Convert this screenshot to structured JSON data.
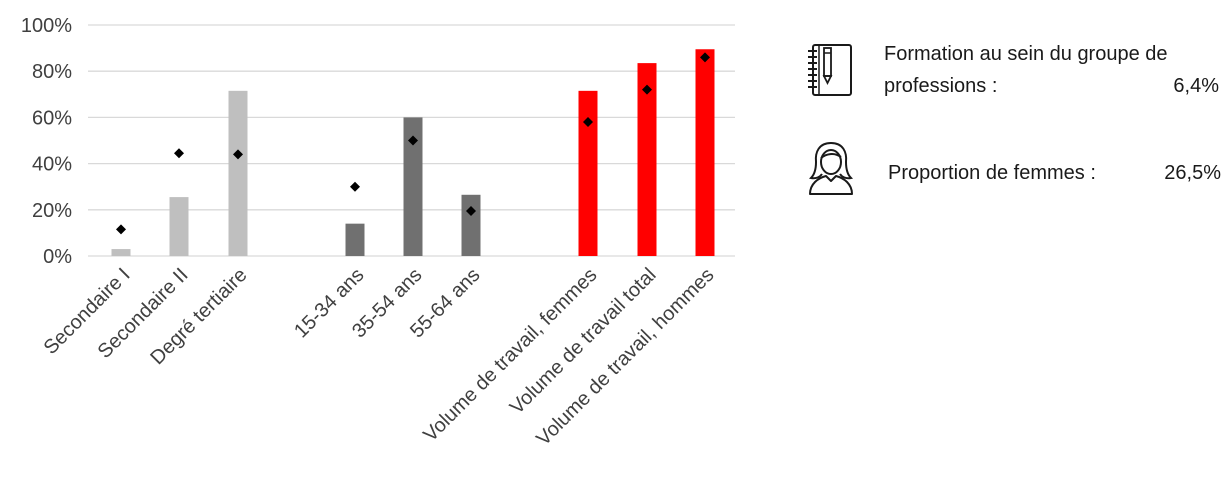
{
  "chart_data": {
    "type": "bar",
    "categories": [
      "Secondaire I",
      "Secondaire II",
      "Degré tertiaire",
      "15-34 ans",
      "35-54 ans",
      "55-64 ans",
      "Volume de travail, femmes",
      "Volume de travail total",
      "Volume de travail, hommes"
    ],
    "groups": [
      {
        "categories": [
          0,
          1,
          2
        ],
        "color": "#bfbfbf"
      },
      {
        "categories": [
          3,
          4,
          5
        ],
        "color": "#707070"
      },
      {
        "categories": [
          6,
          7,
          8
        ],
        "color": "#ff0000"
      }
    ],
    "values": [
      3,
      25.5,
      71.5,
      14,
      60,
      26.5,
      71.5,
      83.5,
      89.5
    ],
    "markers": [
      11.5,
      44.5,
      44,
      30,
      50,
      19.5,
      58,
      72,
      86
    ],
    "marker_color": "#000000",
    "ylim": [
      0,
      100
    ],
    "yticks": [
      0,
      20,
      40,
      60,
      80,
      100
    ],
    "ytick_labels": [
      "0%",
      "20%",
      "40%",
      "60%",
      "80%",
      "100%"
    ],
    "grid": true,
    "gridline_color": "#d9d9d9"
  },
  "info": {
    "formation_label_line1": "Formation au sein du groupe de",
    "formation_label_line2": "professions :",
    "formation_value": "6,4%",
    "femmes_label": "Proportion de femmes :",
    "femmes_value": "26,5%",
    "notebook_icon": "notebook-pen-icon",
    "woman_icon": "woman-icon"
  }
}
